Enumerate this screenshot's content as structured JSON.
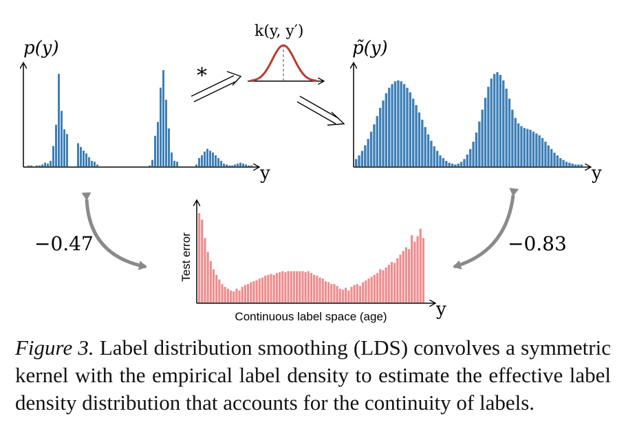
{
  "figure": {
    "left_axis_label": "p(y)",
    "right_axis_label": "p̃(y)",
    "kernel_label": "k(y, y′)",
    "conv_symbol": "*",
    "axis_y_label": "y",
    "corr_left": "−0.47",
    "corr_right": "−0.83",
    "error_ylabel": "Test error",
    "error_xlabel": "Continuous label space (age)",
    "colors": {
      "blue": "#3d7fb8",
      "red": "#f08c8c",
      "kernel": "#b83a2c",
      "arrow": "#8a8a8a"
    }
  },
  "chart_data": [
    {
      "type": "bar",
      "title": "p(y)",
      "xlabel": "y",
      "ylabel": "",
      "values": [
        0,
        0.01,
        0.01,
        0,
        0.01,
        0.01,
        0.02,
        0.04,
        0.03,
        0.06,
        0.22,
        0.45,
        1.0,
        0.6,
        0.4,
        0.35,
        0,
        0,
        0,
        0.25,
        0.21,
        0.17,
        0.14,
        0.1,
        0.06,
        0.05,
        0.02,
        0,
        0,
        0,
        0,
        0,
        0,
        0,
        0,
        0,
        0,
        0,
        0,
        0,
        0,
        0,
        0,
        0,
        0,
        0.01,
        0.07,
        0.33,
        0.48,
        0.85,
        1.04,
        0.72,
        0.41,
        0.15,
        0.06,
        0.05,
        0,
        0,
        0,
        0,
        0,
        0,
        0.02,
        0.09,
        0.12,
        0.16,
        0.19,
        0.17,
        0.15,
        0.12,
        0.09,
        0.06,
        0.03,
        0.02,
        0.01,
        0.01,
        0.02,
        0.03,
        0.04,
        0.03,
        0.02,
        0.01,
        0.01
      ]
    },
    {
      "type": "bar",
      "title": "p̃(y)",
      "xlabel": "y",
      "ylabel": "",
      "values": [
        0.08,
        0.12,
        0.17,
        0.23,
        0.3,
        0.38,
        0.46,
        0.55,
        0.64,
        0.72,
        0.8,
        0.86,
        0.9,
        0.93,
        0.94,
        0.93,
        0.9,
        0.86,
        0.81,
        0.74,
        0.67,
        0.59,
        0.51,
        0.43,
        0.35,
        0.28,
        0.22,
        0.17,
        0.12,
        0.09,
        0.06,
        0.04,
        0.03,
        0.02,
        0.03,
        0.05,
        0.08,
        0.13,
        0.19,
        0.27,
        0.37,
        0.49,
        0.62,
        0.75,
        0.87,
        0.96,
        1.01,
        1.03,
        1.0,
        0.94,
        0.85,
        0.74,
        0.62,
        0.53,
        0.47,
        0.44,
        0.42,
        0.41,
        0.4,
        0.38,
        0.36,
        0.34,
        0.31,
        0.27,
        0.23,
        0.19,
        0.15,
        0.12,
        0.09,
        0.07,
        0.05,
        0.04,
        0.03,
        0.02,
        0.02,
        0.02
      ]
    },
    {
      "type": "bar",
      "title": "",
      "xlabel": "Continuous label space (age)",
      "ylabel": "Test error",
      "values": [
        0.97,
        0.9,
        0.7,
        0.55,
        0.45,
        0.36,
        0.3,
        0.25,
        0.2,
        0.17,
        0.15,
        0.13,
        0.12,
        0.15,
        0.13,
        0.17,
        0.19,
        0.2,
        0.22,
        0.23,
        0.24,
        0.26,
        0.27,
        0.29,
        0.3,
        0.31,
        0.3,
        0.32,
        0.33,
        0.34,
        0.33,
        0.34,
        0.34,
        0.34,
        0.34,
        0.34,
        0.34,
        0.33,
        0.34,
        0.32,
        0.3,
        0.29,
        0.27,
        0.26,
        0.23,
        0.22,
        0.2,
        0.2,
        0.18,
        0.15,
        0.14,
        0.16,
        0.13,
        0.17,
        0.19,
        0.2,
        0.18,
        0.22,
        0.24,
        0.26,
        0.28,
        0.3,
        0.32,
        0.36,
        0.35,
        0.38,
        0.41,
        0.44,
        0.43,
        0.48,
        0.52,
        0.56,
        0.6,
        0.58,
        0.73,
        0.66,
        0.72,
        0.8,
        0.7
      ]
    }
  ],
  "caption": {
    "lead": "Figure 3.",
    "text": " Label distribution smoothing (LDS) convolves a symmetric kernel with the empirical label density to estimate the effective label density distribution that accounts for the continuity of labels."
  }
}
